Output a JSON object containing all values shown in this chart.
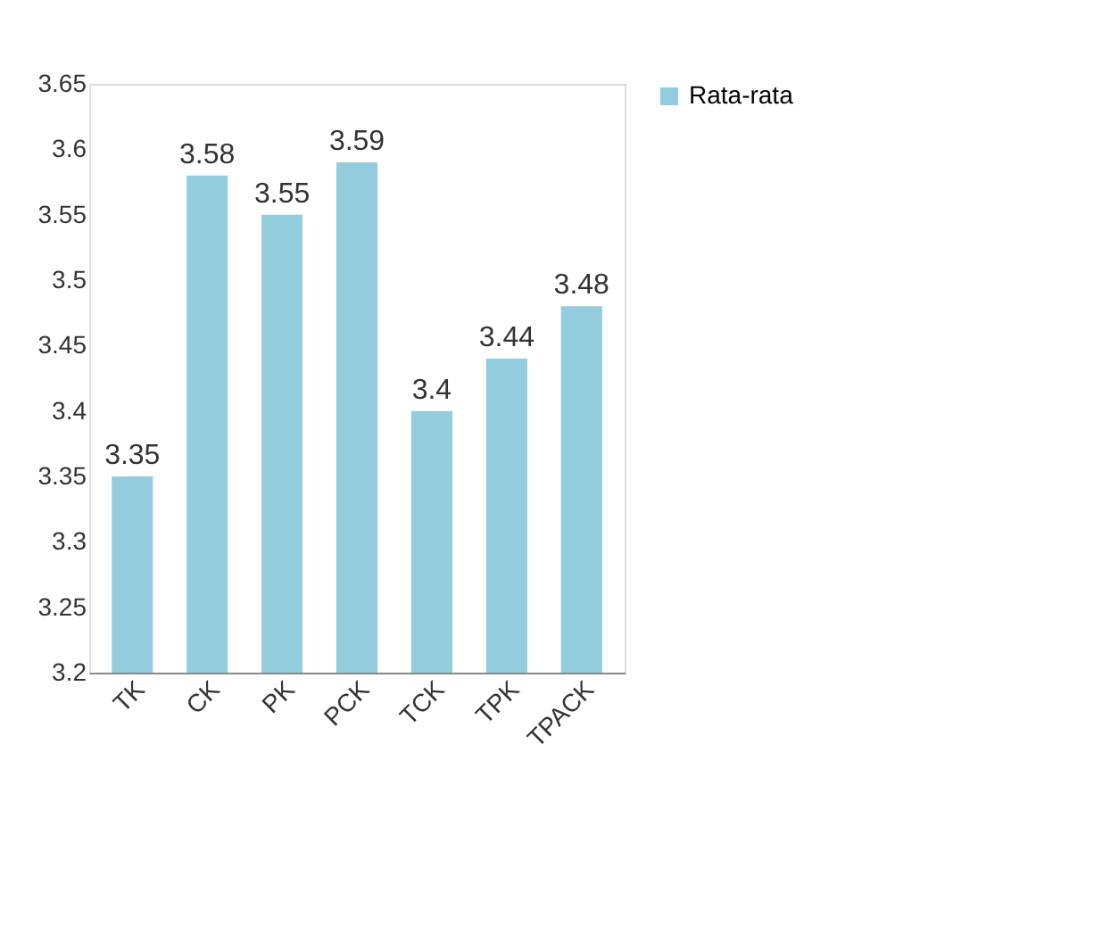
{
  "chart_data": {
    "type": "bar",
    "categories": [
      "TK",
      "CK",
      "PK",
      "PCK",
      "TCK",
      "TPK",
      "TPACK"
    ],
    "series": [
      {
        "name": "Rata-rata",
        "color": "#93cddd",
        "values": [
          3.35,
          3.58,
          3.55,
          3.59,
          3.4,
          3.44,
          3.48
        ]
      }
    ],
    "ylim": [
      3.2,
      3.65
    ],
    "yticks": [
      3.2,
      3.25,
      3.3,
      3.35,
      3.4,
      3.45,
      3.5,
      3.55,
      3.6,
      3.65
    ],
    "data_labels": true,
    "grid": false,
    "legend": "right"
  }
}
